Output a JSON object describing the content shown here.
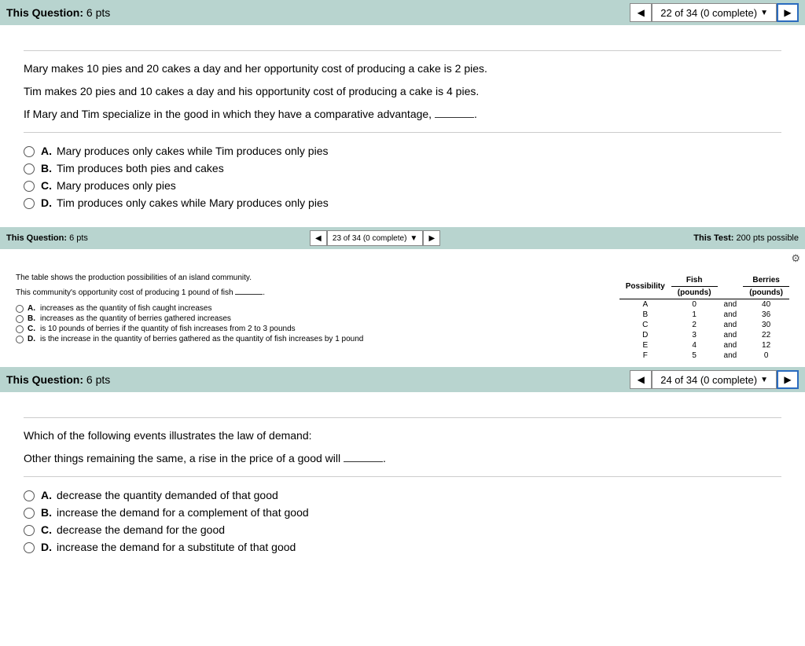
{
  "q22": {
    "header_label": "This Question:",
    "pts": "6 pts",
    "progress": "22 of 34 (0 complete)",
    "line1": "Mary makes 10 pies and 20 cakes a day and her opportunity cost of producing a cake is 2 pies.",
    "line2": "Tim makes 20 pies and 10 cakes a day and his opportunity cost of producing a cake is 4 pies.",
    "line3_a": "If Mary and Tim specialize in the good in which they have a comparative advantage, ",
    "line3_b": ".",
    "options": {
      "A": "Mary produces only cakes while Tim produces only pies",
      "B": "Tim produces both pies and cakes",
      "C": "Mary produces only pies",
      "D": "Tim produces only cakes while Mary produces only pies"
    }
  },
  "q23": {
    "header_label": "This Question:",
    "pts": "6 pts",
    "progress": "23 of 34 (0 complete)",
    "test_label": "This Test:",
    "test_pts": "200 pts possible",
    "line1": "The table shows the production possibilities of an island community.",
    "line2_a": "This community's opportunity cost of producing 1 pound of fish ",
    "line2_b": ".",
    "options": {
      "A": "increases as the quantity of fish caught increases",
      "B": "increases as the quantity of berries gathered increases",
      "C": "is 10 pounds of berries if the quantity of fish increases from 2 to 3 pounds",
      "D": "is the increase in the quantity of berries gathered as the quantity of fish increases by 1 pound"
    },
    "table": {
      "headers": {
        "c1": "Possibility",
        "c2": "Fish",
        "c2sub": "(pounds)",
        "c3": "",
        "c4": "Berries",
        "c4sub": "(pounds)"
      },
      "rows": [
        {
          "p": "A",
          "f": "0",
          "a": "and",
          "b": "40"
        },
        {
          "p": "B",
          "f": "1",
          "a": "and",
          "b": "36"
        },
        {
          "p": "C",
          "f": "2",
          "a": "and",
          "b": "30"
        },
        {
          "p": "D",
          "f": "3",
          "a": "and",
          "b": "22"
        },
        {
          "p": "E",
          "f": "4",
          "a": "and",
          "b": "12"
        },
        {
          "p": "F",
          "f": "5",
          "a": "and",
          "b": "0"
        }
      ]
    }
  },
  "q24": {
    "header_label": "This Question:",
    "pts": "6 pts",
    "progress": "24 of 34 (0 complete)",
    "line1": "Which of the following events illustrates the law of demand:",
    "line2_a": "Other things remaining the same, a rise in the price of a good will ",
    "line2_b": ".",
    "options": {
      "A": "decrease the quantity demanded of that good",
      "B": "increase the demand for a complement of that good",
      "C": "decrease the demand for the good",
      "D": "increase the demand for a substitute of that good"
    }
  },
  "labels": {
    "A": "A.",
    "B": "B.",
    "C": "C.",
    "D": "D."
  },
  "gear_icon": "⚙"
}
